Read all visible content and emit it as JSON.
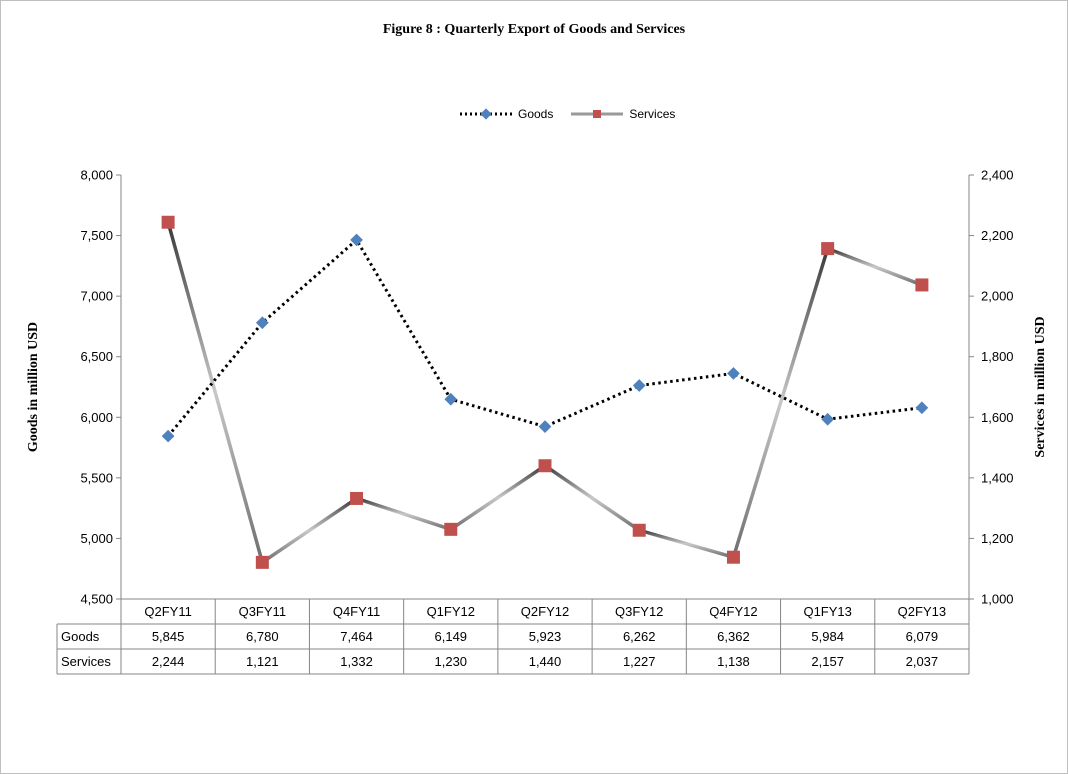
{
  "chart_data": {
    "type": "line",
    "title": "Figure  8 : Quarterly Export of Goods and Services",
    "categories": [
      "Q2FY11",
      "Q3FY11",
      "Q4FY11",
      "Q1FY12",
      "Q2FY12",
      "Q3FY12",
      "Q4FY12",
      "Q1FY13",
      "Q2FY13"
    ],
    "series": [
      {
        "name": "Goods",
        "axis": "left",
        "values": [
          5845,
          6780,
          7464,
          6149,
          5923,
          6262,
          6362,
          5984,
          6079
        ],
        "labels": [
          "5,845",
          "6,780",
          "7,464",
          "6,149",
          "5,923",
          "6,262",
          "6,362",
          "5,984",
          "6,079"
        ],
        "color": "#4f81bd",
        "line_color": "#000000",
        "line_style": "dotted",
        "marker": "diamond"
      },
      {
        "name": "Services",
        "axis": "right",
        "values": [
          2244,
          1121,
          1332,
          1230,
          1440,
          1227,
          1138,
          2157,
          2037
        ],
        "labels": [
          "2,244",
          "1,121",
          "1,332",
          "1,230",
          "1,440",
          "1,227",
          "1,138",
          "2,157",
          "2,037"
        ],
        "color": "#c0504d",
        "line_color": "#7f7f7f",
        "line_style": "solid",
        "marker": "square"
      }
    ],
    "ylabel": "Goods in million  USD",
    "y2label": "Services in million  USD",
    "ylim": [
      4500,
      8000
    ],
    "y2lim": [
      1000,
      2400
    ],
    "yticks": [
      "4,500",
      "5,000",
      "5,500",
      "6,000",
      "6,500",
      "7,000",
      "7,500",
      "8,000"
    ],
    "y2ticks": [
      "1,000",
      "1,200",
      "1,400",
      "1,600",
      "1,800",
      "2,000",
      "2,200",
      "2,400"
    ],
    "legend_position": "top",
    "grid": false,
    "data_table": true
  }
}
